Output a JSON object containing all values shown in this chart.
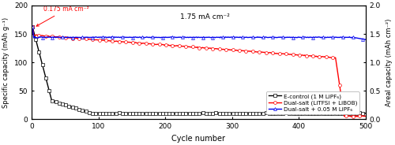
{
  "title_annotation": "1.75 mA cm⁻²",
  "annotation_low": "0.175 mA cm⁻²",
  "xlabel": "Cycle number",
  "ylabel_left": "Specific capacity (mAh g⁻¹)",
  "ylabel_right": "Areal capacity (mAh cm⁻²)",
  "xlim": [
    0,
    500
  ],
  "ylim_left": [
    0,
    200
  ],
  "ylim_right": [
    0,
    2.0
  ],
  "yticks_left": [
    0,
    50,
    100,
    150,
    200
  ],
  "yticks_right": [
    0.0,
    0.5,
    1.0,
    1.5,
    2.0
  ],
  "xticks": [
    0,
    100,
    200,
    300,
    400,
    500
  ],
  "legend_labels": [
    "Dual-salt + 0.05 M LiPF₆",
    "Dual-salt (LiTFSI + LiBOB)",
    "E-control (1 M LiPF₆)"
  ],
  "colors": {
    "blue": "#0000ee",
    "red": "#ff0000",
    "black": "#000000"
  },
  "background": "#ffffff",
  "blue_stable": 144,
  "blue_start": 163,
  "red_start": 163,
  "red_mid": 148,
  "red_cycle_drop_start": 455,
  "red_cycle_drop_end": 468,
  "red_after_drop": 5,
  "black_start": 163,
  "black_decay_end_cycle": 90,
  "black_stable": 10,
  "lw": 1.0,
  "ms": 2.8
}
